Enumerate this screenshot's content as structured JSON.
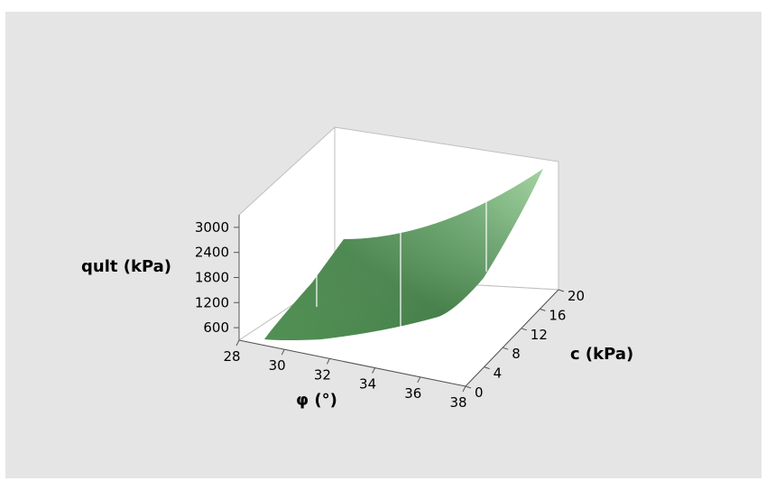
{
  "chart_data": {
    "type": "surface",
    "title": "",
    "xlabel": "φ (°)",
    "ylabel": "c (kPa)",
    "zlabel": "qult (kPa)",
    "x_ticks": [
      28,
      30,
      32,
      34,
      36,
      38
    ],
    "y_ticks": [
      0,
      4,
      8,
      12,
      16,
      20
    ],
    "z_ticks": [
      600,
      1200,
      1800,
      2400,
      3000
    ],
    "xlim": [
      28,
      38
    ],
    "ylim": [
      0,
      20
    ],
    "zlim": [
      300,
      3300
    ],
    "surface_corners": [
      {
        "phi": 28,
        "c": 0,
        "qult": 600
      },
      {
        "phi": 38,
        "c": 0,
        "qult": 1700
      },
      {
        "phi": 28,
        "c": 20,
        "qult": 1100
      },
      {
        "phi": 38,
        "c": 20,
        "qult": 3100
      }
    ],
    "surface_color": "#2e7d32",
    "surface_highlight": "#a8d8a0",
    "background": "#e5e5e5"
  }
}
